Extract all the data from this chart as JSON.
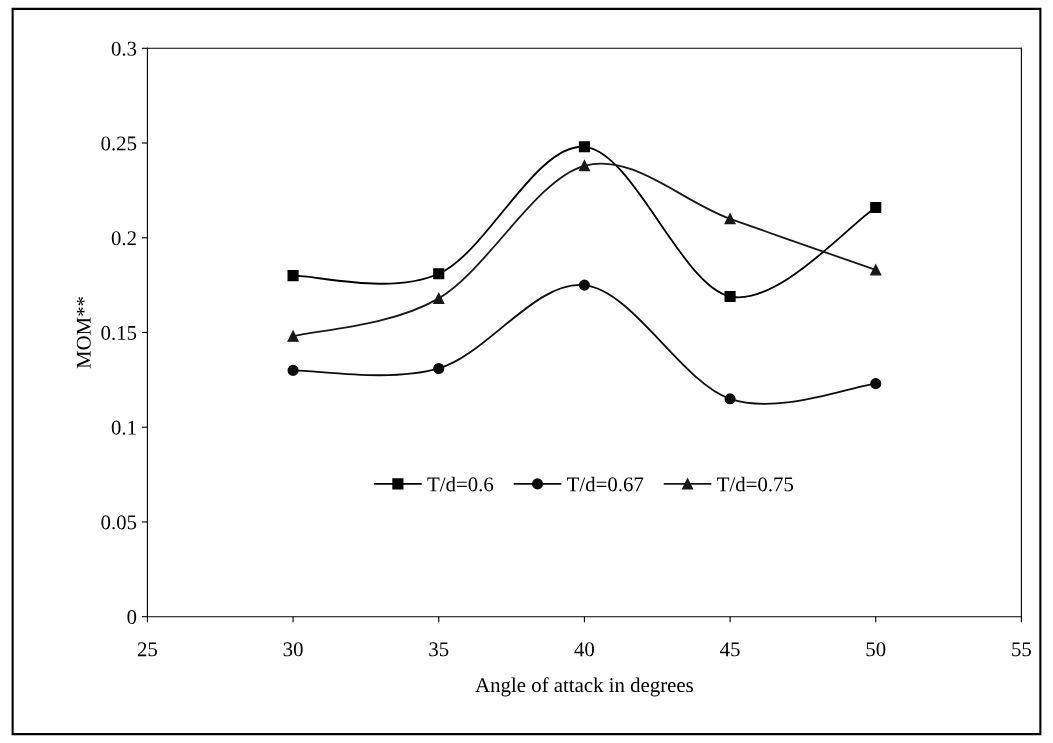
{
  "chart_data": {
    "type": "line",
    "xlabel": "Angle of attack in degrees",
    "ylabel": "MOM**",
    "x": [
      30,
      35,
      40,
      45,
      50
    ],
    "series": [
      {
        "name": "T/d=0.6",
        "color": "#000000",
        "marker": "square",
        "values": [
          0.18,
          0.181,
          0.248,
          0.169,
          0.216
        ]
      },
      {
        "name": "T/d=0.67",
        "color": "#0c0c0c",
        "marker": "circle",
        "values": [
          0.13,
          0.131,
          0.175,
          0.115,
          0.123
        ]
      },
      {
        "name": "T/d=0.75",
        "color": "#181818",
        "marker": "triangle",
        "values": [
          0.148,
          0.168,
          0.238,
          0.21,
          0.183
        ]
      }
    ],
    "xlim": [
      25,
      55
    ],
    "xticks": [
      25,
      30,
      35,
      40,
      45,
      50,
      55
    ],
    "ylim": [
      0,
      0.3
    ],
    "yticks": [
      0,
      0.05,
      0.1,
      0.15,
      0.2,
      0.25,
      0.3
    ],
    "grid": false,
    "legend": "bottom",
    "line_style": "solid"
  }
}
